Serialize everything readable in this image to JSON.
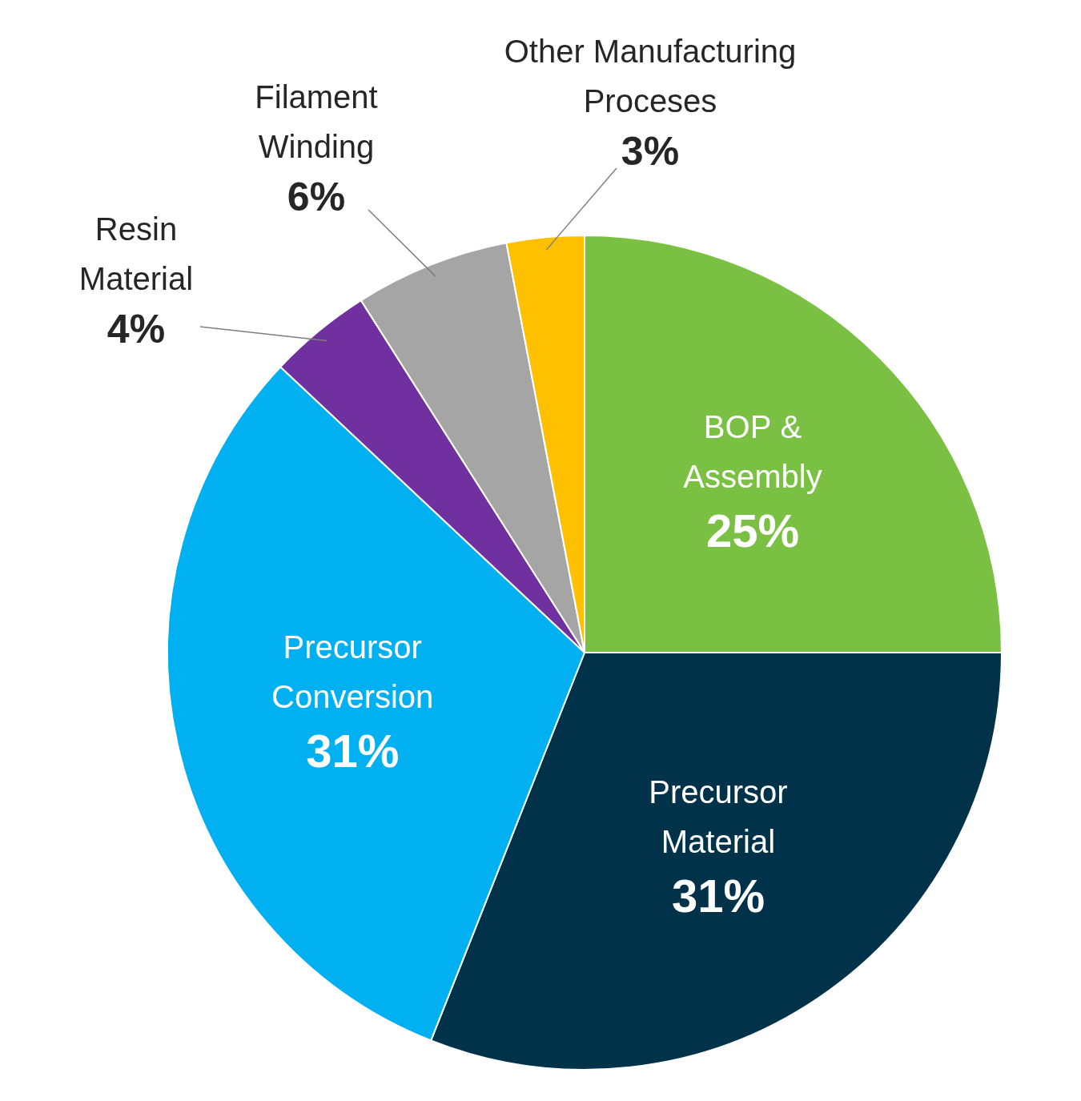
{
  "chart_data": {
    "type": "pie",
    "categories": [
      "BOP & Assembly",
      "Precursor Material",
      "Precursor Conversion",
      "Resin Material",
      "Filament Winding",
      "Other Manufacturing Proceses"
    ],
    "values": [
      25,
      31,
      31,
      4,
      6,
      3
    ],
    "value_labels": [
      "25%",
      "31%",
      "31%",
      "4%",
      "6%",
      "3%"
    ],
    "colors": [
      "#7ac143",
      "#003349",
      "#00b0f0",
      "#7030a0",
      "#a5a5a5",
      "#ffc000"
    ],
    "data_labels": true
  }
}
